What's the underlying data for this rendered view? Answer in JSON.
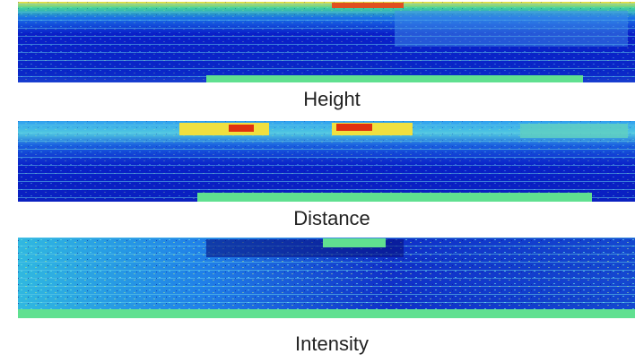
{
  "panels": [
    {
      "caption": "Height"
    },
    {
      "caption": "Distance"
    },
    {
      "caption": "Intensity"
    }
  ]
}
